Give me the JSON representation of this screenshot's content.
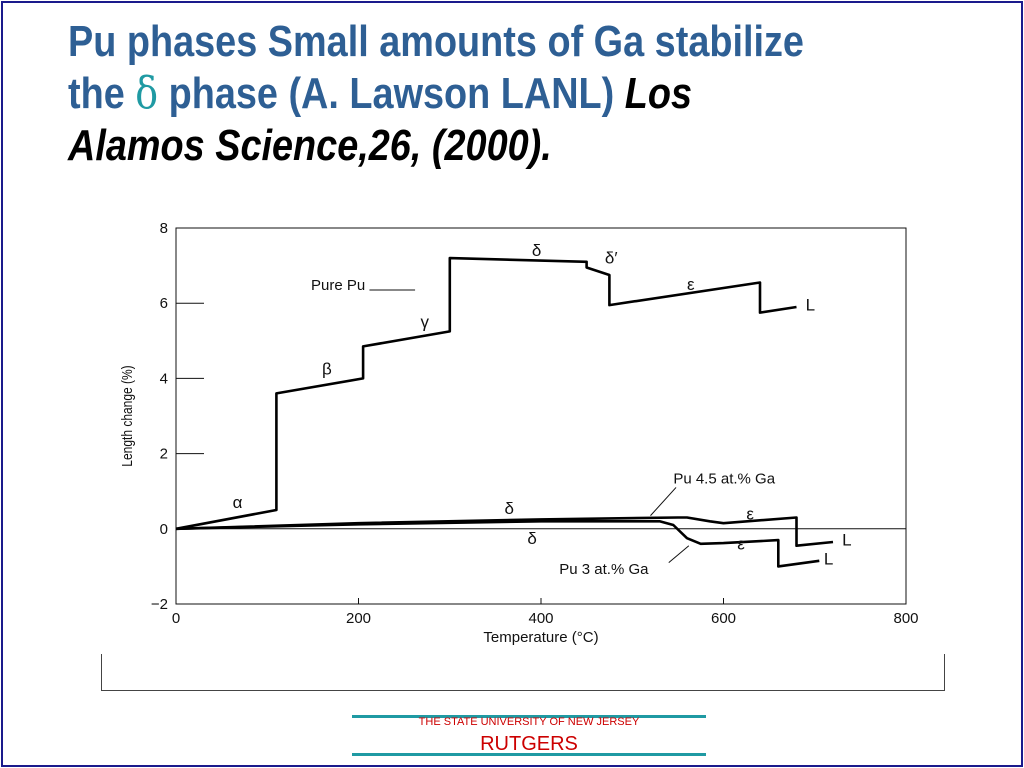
{
  "slide": {
    "title_line1": "Pu phases Small amounts of Ga stabilize",
    "title_line2_a": "the ",
    "title_delta": "δ",
    "title_line2_b": " phase (A. Lawson LANL) ",
    "title_cite_a": "Los",
    "title_cite_b": "Alamos Science,26, (2000",
    "title_cite_c": ").",
    "footer_sub": "THE STATE UNIVERSITY OF NEW JERSEY",
    "footer_name": "RUTGERS"
  },
  "chart_data": {
    "type": "line",
    "xlabel": "Temperature (°C)",
    "ylabel": "Length change (%)",
    "xlim": [
      0,
      800
    ],
    "ylim": [
      -2,
      8
    ],
    "x_ticks": [
      0,
      200,
      400,
      600,
      800
    ],
    "y_ticks": [
      8,
      6,
      4,
      2,
      0,
      -2
    ],
    "x_tick_labels": [
      "0",
      "200",
      "400",
      "600",
      "800"
    ],
    "y_tick_labels": [
      "8",
      "6",
      "4",
      "2",
      "0",
      "−2"
    ],
    "series": [
      {
        "name": "Pure Pu",
        "points": [
          [
            0,
            0
          ],
          [
            110,
            0.5
          ],
          [
            110,
            3.6
          ],
          [
            205,
            4.0
          ],
          [
            205,
            4.85
          ],
          [
            300,
            5.25
          ],
          [
            300,
            7.2
          ],
          [
            450,
            7.1
          ],
          [
            450,
            6.95
          ],
          [
            475,
            6.75
          ],
          [
            475,
            5.95
          ],
          [
            640,
            6.55
          ],
          [
            640,
            5.75
          ],
          [
            680,
            5.9
          ]
        ]
      },
      {
        "name": "Pu 4.5 at.% Ga",
        "points": [
          [
            0,
            0
          ],
          [
            200,
            0.15
          ],
          [
            400,
            0.25
          ],
          [
            550,
            0.3
          ],
          [
            560,
            0.3
          ],
          [
            585,
            0.2
          ],
          [
            600,
            0.15
          ],
          [
            680,
            0.3
          ],
          [
            680,
            -0.45
          ],
          [
            720,
            -0.35
          ]
        ]
      },
      {
        "name": "Pu 3 at.% Ga",
        "points": [
          [
            0,
            0
          ],
          [
            200,
            0.12
          ],
          [
            400,
            0.2
          ],
          [
            530,
            0.2
          ],
          [
            545,
            0.1
          ],
          [
            560,
            -0.25
          ],
          [
            575,
            -0.4
          ],
          [
            600,
            -0.38
          ],
          [
            660,
            -0.3
          ],
          [
            660,
            -1.0
          ],
          [
            705,
            -0.85
          ]
        ]
      }
    ],
    "annotations": [
      {
        "text": "α",
        "x": 62,
        "y": 0.55
      },
      {
        "text": "β",
        "x": 160,
        "y": 4.1
      },
      {
        "text": "γ",
        "x": 268,
        "y": 5.35
      },
      {
        "text": "δ",
        "x": 390,
        "y": 7.25
      },
      {
        "text": "δ′",
        "x": 470,
        "y": 7.05
      },
      {
        "text": "ε",
        "x": 560,
        "y": 6.35
      },
      {
        "text": "L",
        "x": 690,
        "y": 5.8
      },
      {
        "text": "Pure Pu",
        "x": 148,
        "y": 6.35
      },
      {
        "text": "δ",
        "x": 360,
        "y": 0.4
      },
      {
        "text": "ε",
        "x": 625,
        "y": 0.25
      },
      {
        "text": "L",
        "x": 730,
        "y": -0.45
      },
      {
        "text": "Pu 4.5 at.% Ga",
        "x": 545,
        "y": 1.2
      },
      {
        "text": "δ",
        "x": 385,
        "y": -0.4
      },
      {
        "text": "ε",
        "x": 615,
        "y": -0.55
      },
      {
        "text": "L",
        "x": 710,
        "y": -0.95
      },
      {
        "text": "Pu 3 at.% Ga",
        "x": 420,
        "y": -1.2
      }
    ]
  }
}
